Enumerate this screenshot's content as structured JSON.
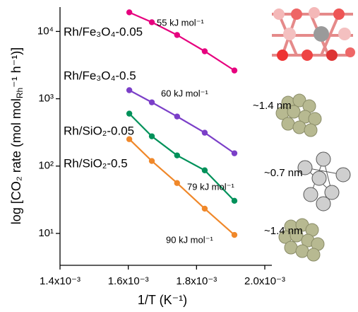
{
  "chart_data": {
    "type": "line",
    "log_y": true,
    "xlabel": "1/T (K⁻¹)",
    "ylabel": [
      "log [CO₂ rate (mol mol",
      "Rh",
      "⁻¹ h⁻¹)]"
    ],
    "xlim": [
      0.0014,
      0.002
    ],
    "ylim": [
      3.36,
      23000
    ],
    "xticks": [
      {
        "value": 0.0014,
        "label": "1.4x10⁻³"
      },
      {
        "value": 0.0016,
        "label": "1.6x10⁻³"
      },
      {
        "value": 0.0018,
        "label": "1.8x10⁻³"
      },
      {
        "value": 0.002,
        "label": "2.0x10⁻³"
      }
    ],
    "yticks": [
      {
        "value": 10,
        "label": "10¹"
      },
      {
        "value": 100,
        "label": "10²"
      },
      {
        "value": 1000,
        "label": "10³"
      },
      {
        "value": 10000,
        "label": "10⁴"
      }
    ],
    "x": [
      0.001603,
      0.001669,
      0.001743,
      0.001824,
      0.001911
    ],
    "series": [
      {
        "name": "Rh/Fe₃O₄-0.05",
        "color": "#e6007e",
        "values": [
          19200,
          13700,
          8850,
          5070,
          2630
        ],
        "energy": "55 kJ mol⁻¹"
      },
      {
        "name": "Rh/Fe₃O₄-0.5",
        "color": "#7b3fc8",
        "values": [
          1340,
          885,
          545,
          313,
          155
        ],
        "energy": "60 kJ mol⁻¹",
        "size": "~1.4 nm"
      },
      {
        "name": "Rh/SiO₂-0.05",
        "color": "#00915a",
        "values": [
          601,
          277,
          144,
          86.5,
          30.5
        ],
        "energy": "79 kJ mol⁻¹",
        "size": "~0.7 nm",
        "size_color": "#6aab3c"
      },
      {
        "name": "Rh/SiO₂-0.5",
        "color": "#f0882a",
        "values": [
          251,
          119,
          56,
          23.3,
          9.5
        ],
        "energy": "90 kJ mol⁻¹",
        "size": "~1.4 nm"
      }
    ]
  }
}
